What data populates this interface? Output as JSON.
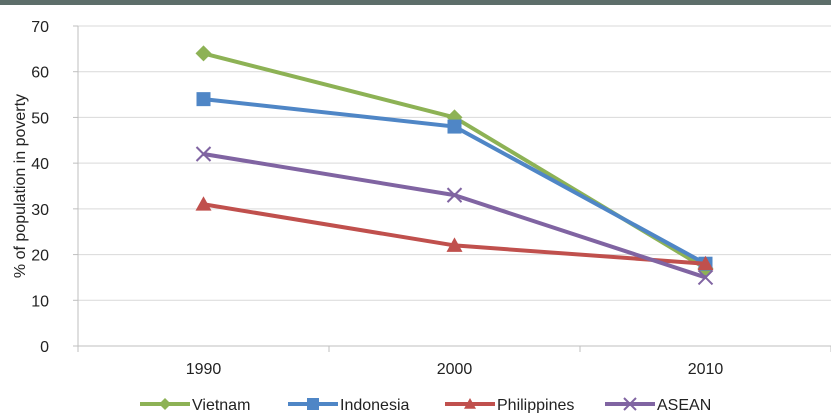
{
  "chart_data": {
    "type": "line",
    "categories": [
      "1990",
      "2000",
      "2010"
    ],
    "series": [
      {
        "name": "Vietnam",
        "values": [
          64,
          50,
          17
        ],
        "color": "#8db255",
        "marker": "diamond"
      },
      {
        "name": "Indonesia",
        "values": [
          54,
          48,
          18
        ],
        "color": "#4f86c6",
        "marker": "square"
      },
      {
        "name": "Philippines",
        "values": [
          31,
          22,
          18
        ],
        "color": "#c0504d",
        "marker": "triangle"
      },
      {
        "name": "ASEAN",
        "values": [
          42,
          33,
          15
        ],
        "color": "#8064a2",
        "marker": "x"
      }
    ],
    "y_ticks": [
      "0",
      "10",
      "20",
      "30",
      "40",
      "50",
      "60",
      "70"
    ],
    "ylabel": "% of population in poverty",
    "xlabel": "",
    "ylim": [
      0,
      70
    ],
    "grid": true,
    "legend_position": "bottom"
  },
  "header_band_color": "#5d6e6a"
}
